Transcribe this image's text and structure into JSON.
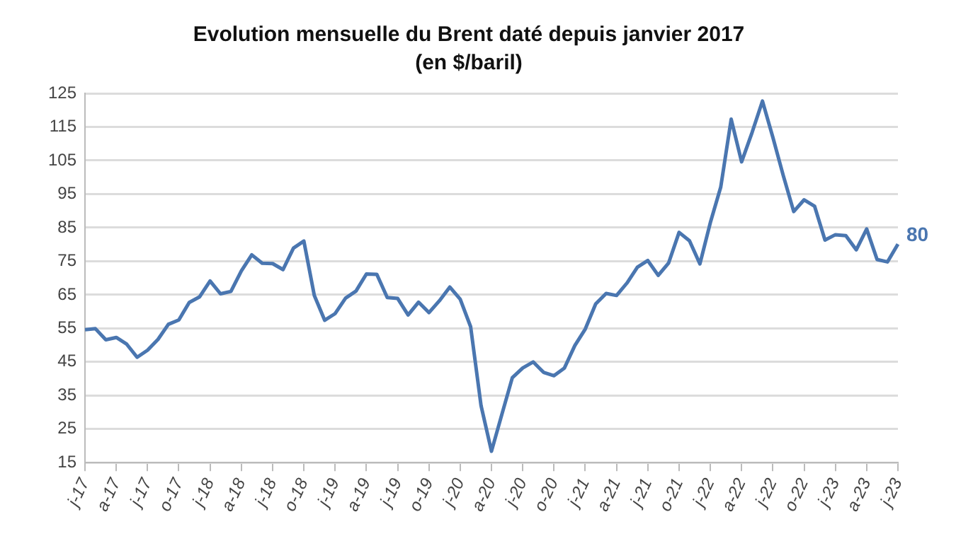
{
  "chart_data": {
    "type": "line",
    "title": "Evolution mensuelle du Brent daté depuis janvier 2017",
    "subtitle": "(en $/baril)",
    "categories": [
      "j-17",
      null,
      null,
      "a-17",
      null,
      null,
      "j-17",
      null,
      null,
      "o-17",
      null,
      null,
      "j-18",
      null,
      null,
      "a-18",
      null,
      null,
      "j-18",
      null,
      null,
      "o-18",
      null,
      null,
      "j-19",
      null,
      null,
      "a-19",
      null,
      null,
      "j-19",
      null,
      null,
      "o-19",
      null,
      null,
      "j-20",
      null,
      null,
      "a-20",
      null,
      null,
      "j-20",
      null,
      null,
      "o-20",
      null,
      null,
      "j-21",
      null,
      null,
      "a-21",
      null,
      null,
      "j-21",
      null,
      null,
      "o-21",
      null,
      null,
      "j-22",
      null,
      null,
      "a-22",
      null,
      null,
      "j-22",
      null,
      null,
      "o-22",
      null,
      null,
      "j-23",
      null,
      null,
      "a-23",
      null,
      null,
      "j-23"
    ],
    "series": [
      {
        "color": "#4a76b0",
        "values": [
          54.6,
          54.9,
          51.6,
          52.3,
          50.3,
          46.4,
          48.5,
          51.7,
          56.2,
          57.5,
          62.7,
          64.4,
          69.1,
          65.3,
          66.0,
          72.1,
          76.9,
          74.4,
          74.3,
          72.5,
          78.9,
          81.0,
          64.8,
          57.4,
          59.4,
          64.0,
          66.1,
          71.2,
          71.1,
          64.2,
          63.9,
          59.0,
          62.8,
          59.7,
          63.2,
          67.3,
          63.7,
          55.5,
          32.0,
          18.4,
          29.4,
          40.3,
          43.2,
          45.0,
          41.9,
          40.9,
          43.2,
          49.9,
          54.8,
          62.3,
          65.4,
          64.8,
          68.5,
          73.2,
          75.2,
          70.8,
          74.5,
          83.6,
          81.1,
          74.2,
          86.5,
          97.1,
          117.3,
          104.6,
          113.3,
          122.7,
          111.9,
          100.5,
          89.8,
          93.3,
          91.4,
          81.3,
          82.9,
          82.6,
          78.4,
          84.6,
          75.5,
          74.8,
          80.1
        ],
        "value_labels": [
          null,
          null,
          null,
          null,
          null,
          null,
          null,
          null,
          null,
          null,
          null,
          null,
          null,
          null,
          null,
          null,
          null,
          null,
          null,
          null,
          null,
          null,
          null,
          null,
          null,
          null,
          null,
          null,
          null,
          null,
          null,
          null,
          null,
          null,
          null,
          null,
          null,
          null,
          null,
          null,
          null,
          null,
          null,
          null,
          null,
          null,
          null,
          null,
          null,
          null,
          null,
          null,
          null,
          null,
          null,
          null,
          null,
          null,
          null,
          null,
          null,
          null,
          null,
          null,
          null,
          null,
          null,
          null,
          null,
          null,
          null,
          null,
          null,
          null,
          null,
          null,
          null,
          null,
          "80"
        ]
      }
    ],
    "ylim": [
      15,
      125
    ],
    "yticks": [
      15,
      25,
      35,
      45,
      55,
      65,
      75,
      85,
      95,
      105,
      115,
      125
    ],
    "grid": "y",
    "legend": false,
    "marker": "none",
    "line_style": "solid"
  }
}
